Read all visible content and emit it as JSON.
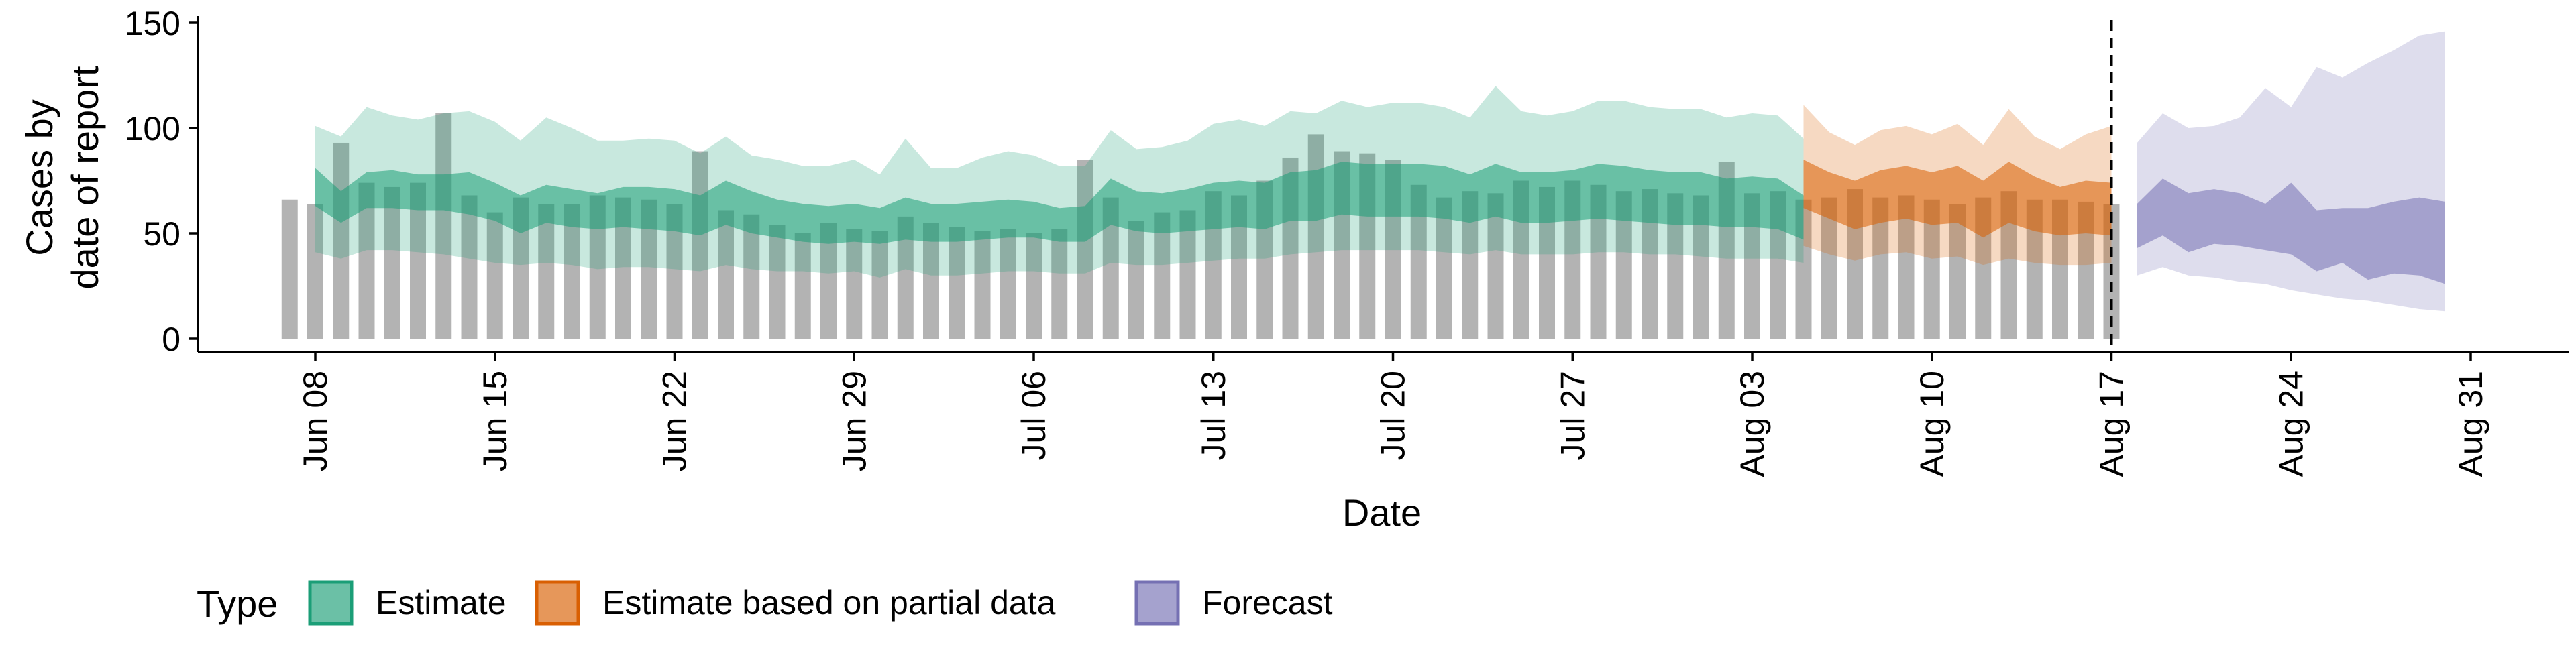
{
  "chart_data": {
    "type": "area",
    "title": "",
    "xlabel": "Date",
    "ylabel_lines": [
      "Cases by",
      "date of report"
    ],
    "y_ticks": [
      0,
      50,
      100,
      150
    ],
    "x_tick_labels": [
      "Jun 08",
      "Jun 15",
      "Jun 22",
      "Jun 29",
      "Jul 06",
      "Jul 13",
      "Jul 20",
      "Jul 27",
      "Aug 03",
      "Aug 10",
      "Aug 17",
      "Aug 24",
      "Aug 31"
    ],
    "x_start_label": "Jun 08",
    "ylim": [
      0,
      150
    ],
    "reference_line_label": "Aug 17",
    "legend": {
      "title": "Type",
      "position": "bottom",
      "entries": [
        {
          "label": "Estimate",
          "color": "#1b9e77"
        },
        {
          "label": "Estimate based on partial data",
          "color": "#d95f02"
        },
        {
          "label": "Forecast",
          "color": "#7570b3"
        }
      ]
    },
    "bar_color": "#b3b3b3",
    "reported_cases": [
      66,
      64,
      93,
      74,
      72,
      74,
      107,
      68,
      60,
      67,
      64,
      64,
      68,
      67,
      66,
      64,
      89,
      61,
      59,
      54,
      50,
      55,
      52,
      51,
      58,
      55,
      53,
      51,
      52,
      50,
      52,
      85,
      67,
      56,
      60,
      61,
      70,
      68,
      75,
      86,
      97,
      89,
      88,
      85,
      73,
      67,
      70,
      69,
      75,
      72,
      75,
      73,
      70,
      71,
      69,
      68,
      84,
      69,
      70,
      66,
      67,
      71,
      67,
      68,
      66,
      64,
      67,
      70,
      66,
      66,
      65,
      64
    ],
    "reported_cases_dates": [
      "Jun 07",
      "Aug 17"
    ],
    "series": [
      {
        "name": "Estimate",
        "dates": [
          "Jun 08",
          "Aug 04"
        ],
        "outer_upper": [
          101,
          96,
          110,
          106,
          104,
          107,
          108,
          103,
          94,
          105,
          100,
          94,
          94,
          95,
          94,
          88,
          96,
          87,
          85,
          82,
          82,
          85,
          78,
          95,
          81,
          81,
          86,
          89,
          87,
          82,
          82,
          99,
          90,
          91,
          94,
          102,
          104,
          101,
          108,
          107,
          113,
          110,
          112,
          112,
          110,
          105,
          120,
          108,
          106,
          108,
          113,
          113,
          110,
          109,
          109,
          105,
          107,
          106,
          95
        ],
        "inner_upper": [
          81,
          70,
          79,
          80,
          78,
          78,
          79,
          74,
          68,
          73,
          71,
          69,
          72,
          72,
          71,
          68,
          75,
          70,
          66,
          64,
          63,
          64,
          62,
          67,
          64,
          64,
          65,
          66,
          65,
          62,
          63,
          76,
          70,
          69,
          71,
          74,
          75,
          74,
          79,
          80,
          84,
          83,
          83,
          83,
          82,
          78,
          83,
          79,
          79,
          80,
          83,
          82,
          80,
          79,
          79,
          76,
          77,
          76,
          68
        ],
        "inner_lower": [
          63,
          55,
          62,
          62,
          61,
          61,
          59,
          56,
          50,
          55,
          53,
          52,
          53,
          52,
          51,
          49,
          54,
          50,
          48,
          46,
          45,
          46,
          45,
          47,
          46,
          46,
          47,
          48,
          48,
          46,
          46,
          54,
          51,
          50,
          51,
          52,
          53,
          52,
          56,
          56,
          59,
          58,
          58,
          58,
          57,
          55,
          58,
          55,
          55,
          56,
          57,
          56,
          55,
          54,
          54,
          53,
          53,
          52,
          47
        ],
        "outer_lower": [
          41,
          38,
          42,
          42,
          41,
          40,
          38,
          36,
          35,
          36,
          35,
          33,
          34,
          34,
          33,
          32,
          35,
          33,
          32,
          32,
          31,
          32,
          29,
          33,
          30,
          30,
          31,
          32,
          32,
          31,
          31,
          36,
          35,
          35,
          36,
          37,
          38,
          38,
          40,
          41,
          42,
          42,
          42,
          42,
          41,
          40,
          42,
          40,
          40,
          40,
          41,
          41,
          40,
          40,
          39,
          38,
          38,
          38,
          36
        ]
      },
      {
        "name": "Estimate based on partial data",
        "dates": [
          "Aug 05",
          "Aug 17"
        ],
        "outer_upper": [
          111,
          98,
          92,
          99,
          101,
          97,
          102,
          92,
          109,
          96,
          90,
          97,
          101
        ],
        "inner_upper": [
          85,
          79,
          75,
          80,
          82,
          79,
          82,
          75,
          84,
          77,
          72,
          75,
          74
        ],
        "inner_lower": [
          62,
          57,
          52,
          55,
          57,
          54,
          55,
          48,
          55,
          51,
          49,
          50,
          49
        ],
        "outer_lower": [
          44,
          40,
          37,
          40,
          41,
          38,
          39,
          35,
          38,
          36,
          35,
          35,
          36
        ]
      },
      {
        "name": "Forecast",
        "dates": [
          "Aug 18",
          "Aug 31"
        ],
        "outer_upper": [
          93,
          107,
          100,
          101,
          105,
          119,
          110,
          129,
          124,
          131,
          137,
          144,
          146
        ],
        "inner_upper": [
          64,
          76,
          69,
          71,
          69,
          64,
          74,
          61,
          62,
          62,
          65,
          67,
          65
        ],
        "inner_lower": [
          43,
          49,
          41,
          45,
          44,
          42,
          40,
          32,
          36,
          28,
          31,
          30,
          26
        ],
        "outer_lower": [
          30,
          34,
          30,
          29,
          27,
          26,
          23,
          21,
          19,
          18,
          16,
          14,
          13
        ]
      }
    ]
  }
}
